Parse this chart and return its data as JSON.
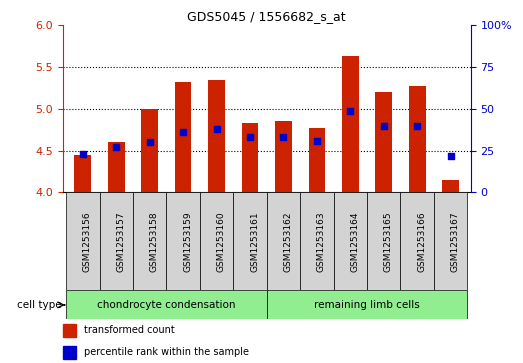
{
  "title": "GDS5045 / 1556682_s_at",
  "samples": [
    "GSM1253156",
    "GSM1253157",
    "GSM1253158",
    "GSM1253159",
    "GSM1253160",
    "GSM1253161",
    "GSM1253162",
    "GSM1253163",
    "GSM1253164",
    "GSM1253165",
    "GSM1253166",
    "GSM1253167"
  ],
  "bar_values": [
    4.45,
    4.6,
    5.0,
    5.32,
    5.35,
    4.83,
    4.86,
    4.77,
    5.63,
    5.2,
    5.28,
    4.15
  ],
  "percentile_values": [
    23,
    27,
    30,
    36,
    38,
    33,
    33,
    31,
    49,
    40,
    40,
    22
  ],
  "ylim_left": [
    4.0,
    6.0
  ],
  "ylim_right": [
    0,
    100
  ],
  "yticks_left": [
    4.0,
    4.5,
    5.0,
    5.5,
    6.0
  ],
  "yticks_right": [
    0,
    25,
    50,
    75,
    100
  ],
  "bar_color": "#cc2200",
  "dot_color": "#0000cc",
  "bar_width": 0.5,
  "cell_types": [
    "chondrocyte condensation",
    "remaining limb cells"
  ],
  "cell_type_ranges": [
    [
      0,
      5
    ],
    [
      6,
      11
    ]
  ],
  "cell_type_color": "#90ee90",
  "cell_type_label": "cell type",
  "legend_items": [
    "transformed count",
    "percentile rank within the sample"
  ],
  "background_color": "#ffffff",
  "tick_bg_color": "#d3d3d3",
  "grid_yticks": [
    4.5,
    5.0,
    5.5
  ]
}
